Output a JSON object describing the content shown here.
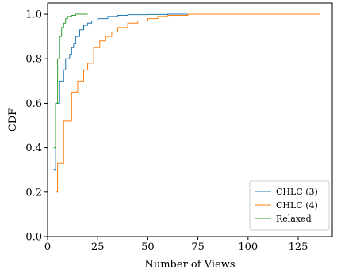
{
  "chart_data": {
    "type": "line",
    "xlabel": "Number of Views",
    "ylabel": "CDF",
    "xlim": [
      0,
      142
    ],
    "ylim": [
      0,
      1.05
    ],
    "xticks": [
      {
        "value": 0,
        "label": "0"
      },
      {
        "value": 25,
        "label": "25"
      },
      {
        "value": 50,
        "label": "50"
      },
      {
        "value": 75,
        "label": "75"
      },
      {
        "value": 100,
        "label": "100"
      },
      {
        "value": 125,
        "label": "125"
      }
    ],
    "yticks": [
      {
        "value": 0.0,
        "label": "0.0"
      },
      {
        "value": 0.2,
        "label": "0.2"
      },
      {
        "value": 0.4,
        "label": "0.4"
      },
      {
        "value": 0.6,
        "label": "0.6"
      },
      {
        "value": 0.8,
        "label": "0.8"
      },
      {
        "value": 1.0,
        "label": "1.0"
      }
    ],
    "grid": false,
    "legend_position": "bottom-right",
    "step": true,
    "series": [
      {
        "name": "CHLC (3)",
        "color": "#1f77b4",
        "x": [
          3,
          4,
          6,
          8,
          9,
          11,
          12,
          13,
          14,
          16,
          18,
          20,
          22,
          25,
          30,
          35,
          40,
          50,
          60,
          136
        ],
        "y": [
          0.3,
          0.6,
          0.7,
          0.75,
          0.8,
          0.82,
          0.85,
          0.87,
          0.9,
          0.93,
          0.95,
          0.96,
          0.97,
          0.98,
          0.99,
          0.995,
          0.998,
          0.999,
          1.0,
          1.0
        ]
      },
      {
        "name": "CHLC (4)",
        "color": "#ff7f0e",
        "x": [
          4,
          5,
          8,
          12,
          15,
          18,
          20,
          23,
          26,
          29,
          32,
          35,
          40,
          45,
          50,
          55,
          60,
          70,
          136
        ],
        "y": [
          0.2,
          0.33,
          0.52,
          0.65,
          0.7,
          0.75,
          0.78,
          0.85,
          0.88,
          0.9,
          0.92,
          0.94,
          0.96,
          0.97,
          0.98,
          0.99,
          0.995,
          1.0,
          1.0
        ]
      },
      {
        "name": "Relaxed",
        "color": "#2ca02c",
        "x": [
          3,
          4,
          5,
          6,
          7,
          8,
          9,
          10,
          12,
          14,
          20
        ],
        "y": [
          0.4,
          0.6,
          0.8,
          0.9,
          0.94,
          0.96,
          0.98,
          0.99,
          0.995,
          1.0,
          1.0
        ]
      }
    ]
  }
}
